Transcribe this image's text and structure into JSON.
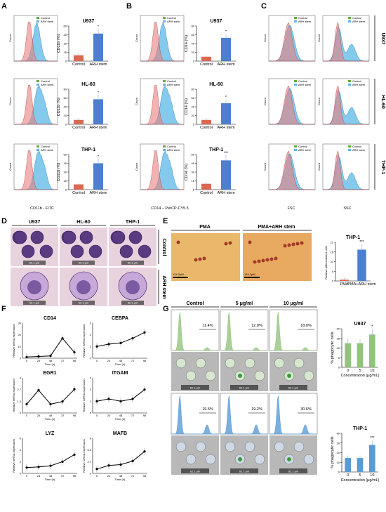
{
  "panels": {
    "A": {
      "label": "A",
      "xaxis": "CD11b - FITC",
      "ylabel": "CD11b (%)",
      "legend": [
        "Control",
        "ARH stem"
      ],
      "cells": [
        "U937",
        "HL-60",
        "THP-1"
      ],
      "stars": [
        "*",
        "*",
        "*"
      ]
    },
    "B": {
      "label": "B",
      "xaxis": "CD14 – PerCP-CY5.5",
      "ylabel": "CD14 (%)",
      "legend": [
        "Control",
        "ARH stem"
      ],
      "cells": [
        "U937",
        "HL-60",
        "THP-1"
      ],
      "stars": [
        "*",
        "*",
        "***"
      ]
    },
    "C": {
      "label": "C",
      "x1": "FSC",
      "x2": "SSC",
      "cells": [
        "U937",
        "HL-60",
        "THP-1"
      ]
    },
    "D": {
      "label": "D",
      "cols": [
        "U937",
        "HL-60",
        "THP-1"
      ],
      "rows": [
        "Control",
        "ARH stem"
      ],
      "scale": "62.1 μm"
    },
    "E": {
      "label": "E",
      "images": [
        "PMA",
        "PMA+ARH stem"
      ],
      "scale": "124.2μM",
      "chart_title": "THP-1",
      "ylabel": "Relative differentiated cells",
      "star": "***"
    },
    "F": {
      "label": "F",
      "xlabel": "Time (h)",
      "ylabel": "Relative mRNA expression"
    },
    "G": {
      "label": "G",
      "conditions": [
        "Control",
        "5 μg/ml",
        "10 μg/ml"
      ],
      "u937_pct": [
        "11.4%",
        "12.0%",
        "18.0%"
      ],
      "thp1_pct": [
        "19.5%",
        "19.2%",
        "30.6%"
      ],
      "scale": "62.1 μm",
      "ylabel": "% phagocytic cells",
      "xlabel": "Concentration (μg/mL)",
      "u937_title": "U937",
      "thp1_title": "THP-1",
      "u937_star": "*",
      "thp1_star": "***"
    }
  },
  "colors": {
    "control": "#d9694f",
    "arh": "#4d7fd0",
    "green": "#92c47d",
    "blue": "#5b9bd5",
    "hist_red": "#e87e7e",
    "hist_blue": "#5bb8e6",
    "hist_green": "#6aaa3a"
  },
  "chart_data": [
    {
      "type": "bar",
      "title": "U937",
      "categories": [
        "Control",
        "ARH stem"
      ],
      "values": [
        10,
        47
      ],
      "ylabel": "CD11b (%)",
      "ylim": [
        0,
        60
      ]
    },
    {
      "type": "bar",
      "title": "HL-60",
      "categories": [
        "Control",
        "ARH stem"
      ],
      "values": [
        10,
        57
      ],
      "ylabel": "CD11b (%)",
      "ylim": [
        0,
        80
      ]
    },
    {
      "type": "bar",
      "title": "THP-1",
      "categories": [
        "Control",
        "ARH stem"
      ],
      "values": [
        9,
        45
      ],
      "ylabel": "CD11b (%)",
      "ylim": [
        0,
        60
      ]
    },
    {
      "type": "bar",
      "title": "U937",
      "categories": [
        "Control",
        "ARH stem"
      ],
      "values": [
        10,
        53
      ],
      "ylabel": "CD14 (%)",
      "ylim": [
        0,
        80
      ]
    },
    {
      "type": "bar",
      "title": "HL-60",
      "categories": [
        "Control",
        "ARH stem"
      ],
      "values": [
        10,
        48
      ],
      "ylabel": "CD14 (%)",
      "ylim": [
        0,
        80
      ]
    },
    {
      "type": "bar",
      "title": "THP-1",
      "categories": [
        "Control",
        "ARH stem"
      ],
      "values": [
        10,
        50
      ],
      "ylabel": "CD14 (%)",
      "ylim": [
        0,
        60
      ]
    },
    {
      "type": "bar",
      "title": "THP-1",
      "categories": [
        "PMA",
        "PMA+ARH stem"
      ],
      "values": [
        0.7,
        17
      ],
      "ylabel": "Relative differentiated cells",
      "ylim": [
        0,
        21
      ]
    },
    {
      "type": "line",
      "title": "CD14",
      "x": [
        0,
        24,
        48,
        72,
        96
      ],
      "values": [
        1,
        1.5,
        2,
        17,
        5
      ],
      "ylim": [
        0,
        30
      ]
    },
    {
      "type": "line",
      "title": "CEBPA",
      "x": [
        0,
        24,
        48,
        72,
        96
      ],
      "values": [
        1,
        1.2,
        1.3,
        1.7,
        2.2
      ],
      "ylim": [
        0,
        3
      ]
    },
    {
      "type": "line",
      "title": "EGR1",
      "x": [
        0,
        24,
        48,
        72,
        96
      ],
      "values": [
        1,
        2.6,
        1,
        1.3,
        2.7
      ],
      "ylim": [
        0,
        4
      ]
    },
    {
      "type": "line",
      "title": "ITGAM",
      "x": [
        0,
        24,
        48,
        72,
        96
      ],
      "values": [
        1,
        1.2,
        1,
        1.2,
        2
      ],
      "ylim": [
        0,
        3
      ]
    },
    {
      "type": "line",
      "title": "LYZ",
      "x": [
        0,
        24,
        48,
        72,
        96
      ],
      "values": [
        1,
        1.1,
        1.3,
        2,
        3.2
      ],
      "ylim": [
        0,
        6
      ]
    },
    {
      "type": "line",
      "title": "MAFB",
      "x": [
        0,
        24,
        48,
        72,
        96
      ],
      "values": [
        1,
        1.8,
        2,
        2.8,
        5
      ],
      "ylim": [
        0,
        8
      ]
    },
    {
      "type": "bar",
      "title": "U937",
      "categories": [
        "0",
        "5",
        "10"
      ],
      "values": [
        12.5,
        12.5,
        17
      ],
      "ylabel": "% phagocytic cells",
      "xlabel": "Concentration (μg/mL)",
      "ylim": [
        0,
        20
      ]
    },
    {
      "type": "bar",
      "title": "THP-1",
      "categories": [
        "0",
        "5",
        "10"
      ],
      "values": [
        14.5,
        14.5,
        28
      ],
      "ylabel": "% phagocytic cells",
      "xlabel": "Concentration (μg/mL)",
      "ylim": [
        0,
        40
      ]
    }
  ]
}
